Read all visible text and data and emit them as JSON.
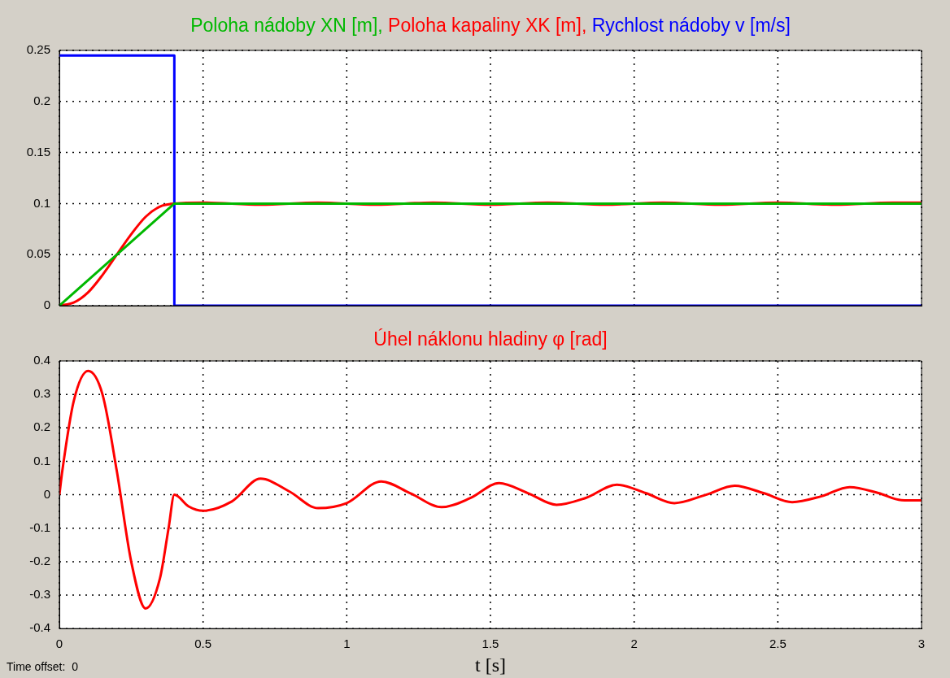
{
  "chart_data": [
    {
      "type": "line",
      "xlim": [
        0,
        3
      ],
      "xticks": [
        0,
        0.5,
        1,
        1.5,
        2,
        2.5,
        3
      ],
      "ylim": [
        0,
        0.25
      ],
      "yticks": [
        0,
        0.05,
        0.1,
        0.15,
        0.2,
        0.25
      ],
      "grid": true,
      "tick_labels": "y",
      "series": [
        {
          "name": "Poloha nádoby XN [m],",
          "color": "#00b800",
          "x": [
            0,
            0.4,
            3
          ],
          "values": [
            0,
            0.1,
            0.1
          ]
        },
        {
          "name": "Poloha kapaliny XK [m],",
          "color": "#ff0000",
          "x": [
            0,
            0.05,
            0.1,
            0.15,
            0.2,
            0.25,
            0.3,
            0.35,
            0.4,
            0.5,
            0.7,
            0.9,
            1.1,
            1.3,
            1.5,
            1.7,
            1.9,
            2.1,
            2.3,
            2.5,
            2.7,
            2.9,
            3
          ],
          "values": [
            0,
            0.003,
            0.013,
            0.03,
            0.05,
            0.07,
            0.087,
            0.097,
            0.1,
            0.101,
            0.099,
            0.101,
            0.099,
            0.101,
            0.099,
            0.101,
            0.099,
            0.101,
            0.099,
            0.101,
            0.099,
            0.101,
            0.101
          ]
        },
        {
          "name": "Rychlost nádoby v [m/s]",
          "color": "#0000ff",
          "x": [
            0,
            0.4,
            0.4,
            3
          ],
          "values": [
            0.245,
            0.245,
            0,
            0
          ]
        }
      ]
    },
    {
      "type": "line",
      "xlabel": "t [s]",
      "xlim": [
        0,
        3
      ],
      "xticks": [
        0,
        0.5,
        1,
        1.5,
        2,
        2.5,
        3
      ],
      "ylim": [
        -0.4,
        0.4
      ],
      "yticks": [
        -0.4,
        -0.3,
        -0.2,
        -0.1,
        0,
        0.1,
        0.2,
        0.3,
        0.4
      ],
      "grid": true,
      "annotations": [
        "Time offset:  0"
      ],
      "series": [
        {
          "name": "Úhel náklonu hladiny φ [rad]",
          "color": "#ff0000",
          "x": [
            0,
            0.01,
            0.05,
            0.1,
            0.15,
            0.2,
            0.25,
            0.3,
            0.35,
            0.38,
            0.4,
            0.45,
            0.5,
            0.6,
            0.7,
            0.8,
            0.9,
            1.0,
            1.12,
            1.22,
            1.33,
            1.43,
            1.53,
            1.63,
            1.73,
            1.83,
            1.94,
            2.04,
            2.14,
            2.25,
            2.35,
            2.45,
            2.55,
            2.65,
            2.75,
            2.85,
            2.93,
            3
          ],
          "values": [
            0,
            0.07,
            0.28,
            0.37,
            0.3,
            0.07,
            -0.2,
            -0.34,
            -0.25,
            -0.1,
            0,
            -0.035,
            -0.048,
            -0.02,
            0.048,
            0.01,
            -0.04,
            -0.025,
            0.04,
            0.005,
            -0.037,
            -0.01,
            0.035,
            0.005,
            -0.03,
            -0.01,
            0.03,
            0.005,
            -0.025,
            0,
            0.027,
            0.005,
            -0.022,
            -0.005,
            0.023,
            0.005,
            -0.016,
            -0.017
          ]
        }
      ]
    }
  ]
}
